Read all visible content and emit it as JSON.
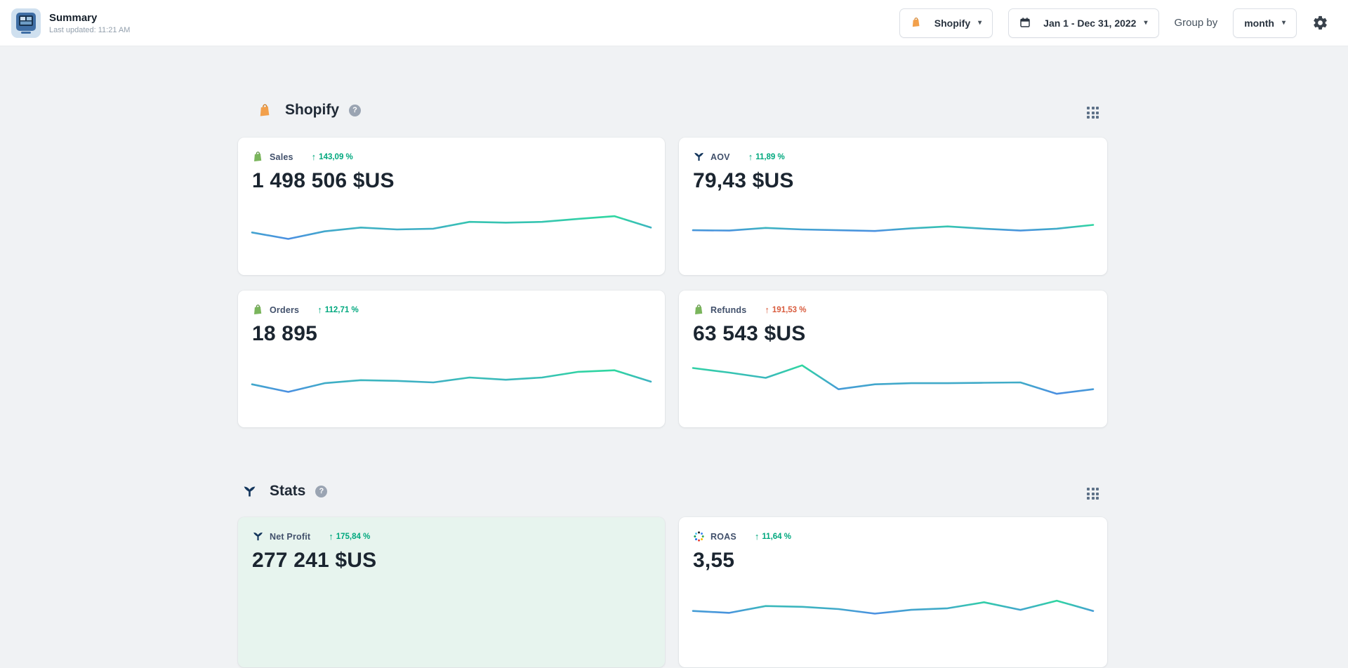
{
  "header": {
    "title": "Summary",
    "last_updated": "Last updated: 11:21 AM",
    "source_picker_label": "Shopify",
    "date_range_label": "Jan 1 - Dec 31, 2022",
    "group_by_label": "Group by",
    "group_by_value": "month"
  },
  "glyphs": {
    "arrow_up": "↑",
    "caret_down": "▾",
    "help": "?"
  },
  "colors": {
    "accent_green": "#00a87e",
    "accent_red": "#d95c3e",
    "spark_high": "#2fd7a0",
    "spark_low": "#4b8fe2",
    "mint_card_bg": "#e7f4ee",
    "shopify_orange": "#f2a04b",
    "shopify_green": "#7ab55c",
    "brand_navy": "#14365c"
  },
  "sections": [
    {
      "title": "Shopify",
      "cards": [
        {
          "label": "Sales",
          "change": "143,09 %",
          "trend": "positive",
          "value": "1 498 506 $US",
          "spark": [
            0.42,
            0.25,
            0.45,
            0.55,
            0.5,
            0.52,
            0.7,
            0.68,
            0.7,
            0.78,
            0.85,
            0.55
          ]
        },
        {
          "label": "AOV",
          "change": "11,89 %",
          "trend": "positive",
          "value": "79,43 $US",
          "spark": [
            0.48,
            0.47,
            0.54,
            0.5,
            0.48,
            0.46,
            0.53,
            0.58,
            0.52,
            0.47,
            0.52,
            0.62
          ]
        },
        {
          "label": "Orders",
          "change": "112,71 %",
          "trend": "positive",
          "value": "18 895",
          "spark": [
            0.45,
            0.25,
            0.48,
            0.56,
            0.54,
            0.5,
            0.63,
            0.57,
            0.63,
            0.78,
            0.82,
            0.52
          ]
        },
        {
          "label": "Refunds",
          "change": "191,53 %",
          "trend": "negative",
          "value": "63 543 $US",
          "spark": [
            0.88,
            0.76,
            0.62,
            0.95,
            0.32,
            0.45,
            0.48,
            0.48,
            0.49,
            0.5,
            0.2,
            0.32
          ]
        }
      ]
    },
    {
      "title": "Stats",
      "cards": [
        {
          "label": "Net Profit",
          "change": "175,84 %",
          "trend": "positive",
          "value": "277 241 $US",
          "spark": null
        },
        {
          "label": "ROAS",
          "change": "11,64 %",
          "trend": "positive",
          "value": "3,55",
          "spark": [
            0.45,
            0.4,
            0.58,
            0.56,
            0.5,
            0.38,
            0.48,
            0.52,
            0.68,
            0.48,
            0.72,
            0.45
          ]
        }
      ]
    }
  ]
}
